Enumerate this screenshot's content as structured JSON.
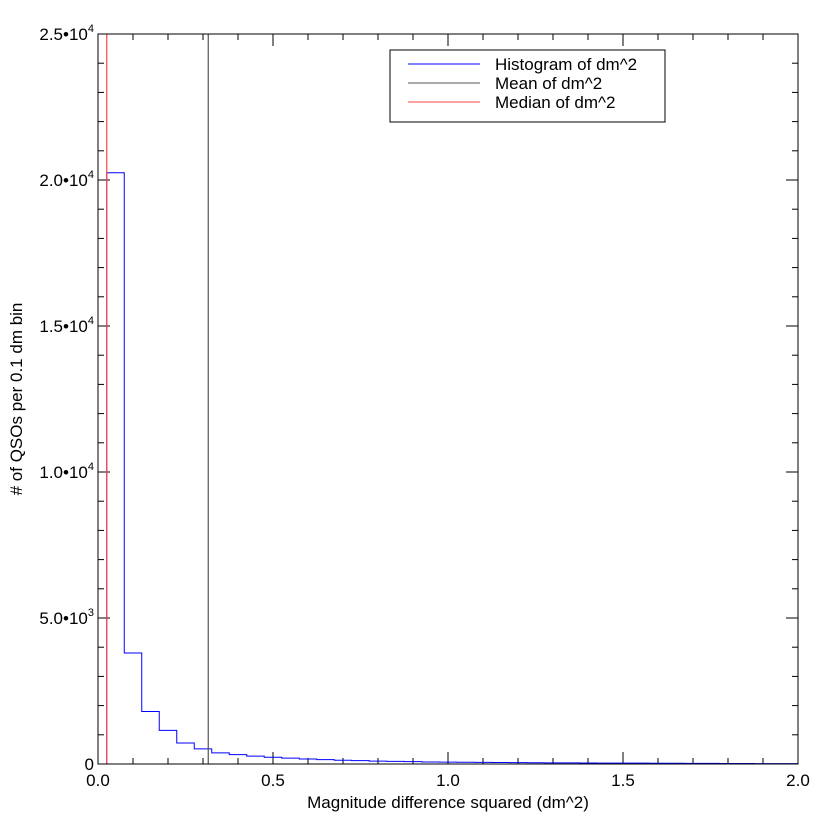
{
  "chart_data": {
    "type": "histogram",
    "title": "",
    "xlabel": "Magnitude difference squared (dm^2)",
    "ylabel": "# of QSOs per 0.1 dm bin",
    "xlim": [
      0.0,
      2.0
    ],
    "ylim": [
      0,
      25000
    ],
    "x_ticks": [
      {
        "value": 0.0,
        "label": "0.0"
      },
      {
        "value": 0.5,
        "label": "0.5"
      },
      {
        "value": 1.0,
        "label": "1.0"
      },
      {
        "value": 1.5,
        "label": "1.5"
      },
      {
        "value": 2.0,
        "label": "2.0"
      }
    ],
    "x_minor_step": 0.1,
    "y_ticks": [
      {
        "value": 0,
        "mantissa": "0",
        "exponent": ""
      },
      {
        "value": 5000,
        "mantissa": "5.0•10",
        "exponent": "3"
      },
      {
        "value": 10000,
        "mantissa": "1.0•10",
        "exponent": "4"
      },
      {
        "value": 15000,
        "mantissa": "1.5•10",
        "exponent": "4"
      },
      {
        "value": 20000,
        "mantissa": "2.0•10",
        "exponent": "4"
      },
      {
        "value": 25000,
        "mantissa": "2.5•10",
        "exponent": "4"
      }
    ],
    "y_minor_step": 1000,
    "grid": false,
    "legend_position": "top-right",
    "series": [
      {
        "name": "Histogram of dm^2",
        "color": "#0000ff",
        "style": "step",
        "bin_start": 0.025,
        "bin_width": 0.05,
        "values": [
          20250,
          3800,
          1800,
          1150,
          720,
          520,
          380,
          320,
          270,
          230,
          200,
          170,
          150,
          130,
          115,
          100,
          90,
          80,
          70,
          65,
          60,
          55,
          50,
          45,
          42,
          40,
          37,
          35,
          32,
          30,
          28,
          26,
          24,
          22,
          20,
          18,
          16,
          14,
          12
        ]
      },
      {
        "name": "Mean of dm^2",
        "color": "#555555",
        "style": "vline",
        "x": 0.315
      },
      {
        "name": "Median of dm^2",
        "color": "#ff4444",
        "style": "vline",
        "x": 0.025
      }
    ]
  }
}
